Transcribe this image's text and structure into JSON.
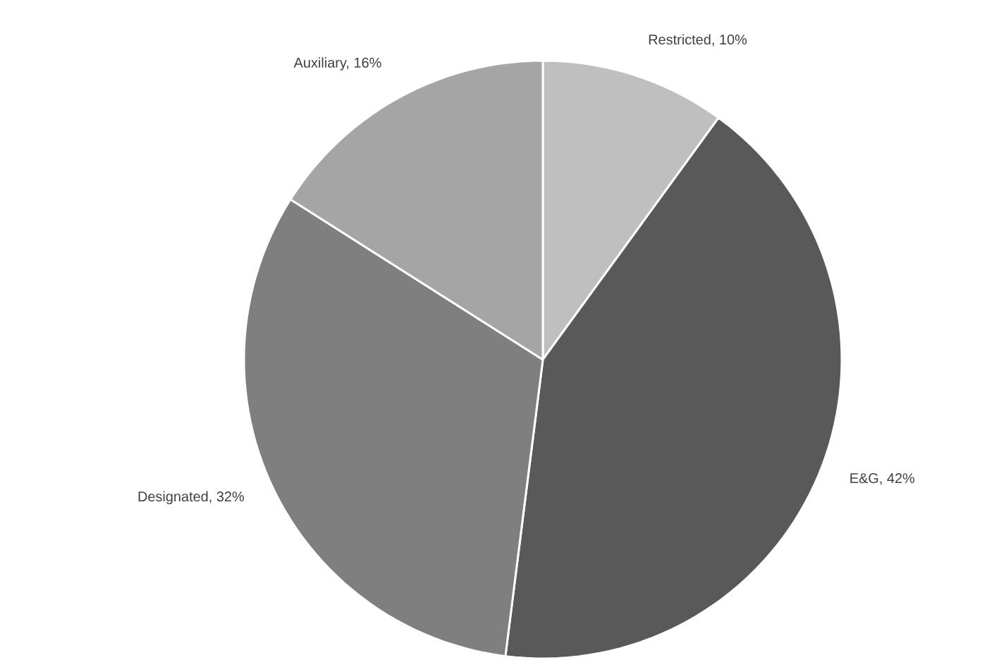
{
  "chart_data": {
    "type": "pie",
    "categories": [
      null,
      null,
      null,
      null
    ],
    "values": [
      10,
      42,
      32,
      16
    ],
    "value_labels": [
      "Restricted, 10%",
      "E&G, 42%",
      "Designated, 32%",
      "Auxiliary, 16%"
    ],
    "colors": [
      "#bfbfbf",
      "#595959",
      "#7f7f7f",
      "#a5a5a5"
    ]
  }
}
